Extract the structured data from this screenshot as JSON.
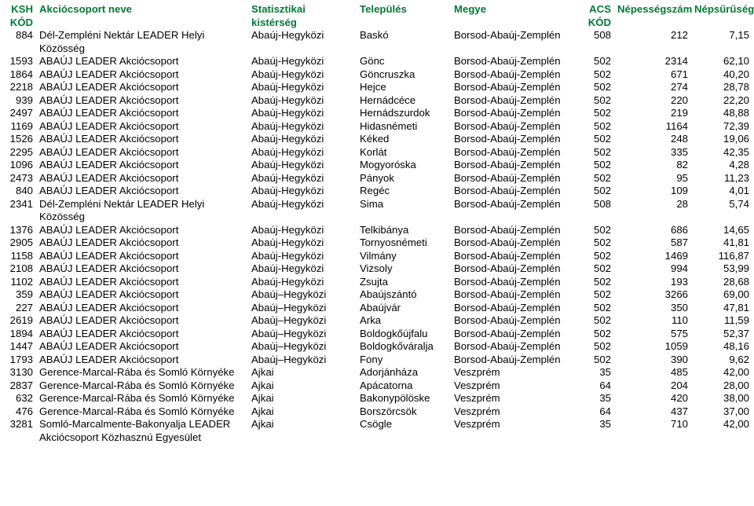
{
  "style": {
    "header_color": "#007a33",
    "row_color": "#000000",
    "background": "#ffffff",
    "font_family": "Arial",
    "font_size_pt": 10
  },
  "columns": [
    {
      "key": "ksh",
      "label": "KSH KÓD"
    },
    {
      "key": "name",
      "label": "Akciócsoport neve"
    },
    {
      "key": "kist",
      "label": "Statisztikai kistérség"
    },
    {
      "key": "tel",
      "label": "Település"
    },
    {
      "key": "megye",
      "label": "Megye"
    },
    {
      "key": "acs",
      "label": "ACS KÓD"
    },
    {
      "key": "pop",
      "label": "Népességszám"
    },
    {
      "key": "dens",
      "label": "Népsűrűség"
    }
  ],
  "rows": [
    {
      "ksh": "884",
      "name": "Dél-Zempléni Nektár LEADER Helyi Közösség",
      "kist": "Abaúj-Hegyközi",
      "tel": "Baskó",
      "megye": "Borsod-Abaúj-Zemplén",
      "acs": "508",
      "pop": "212",
      "dens": "7,15"
    },
    {
      "ksh": "1593",
      "name": "ABAÚJ LEADER Akciócsoport",
      "kist": "Abaúj-Hegyközi",
      "tel": "Gönc",
      "megye": "Borsod-Abaúj-Zemplén",
      "acs": "502",
      "pop": "2314",
      "dens": "62,10"
    },
    {
      "ksh": "1864",
      "name": "ABAÚJ LEADER Akciócsoport",
      "kist": "Abaúj-Hegyközi",
      "tel": "Göncruszka",
      "megye": "Borsod-Abaúj-Zemplén",
      "acs": "502",
      "pop": "671",
      "dens": "40,20"
    },
    {
      "ksh": "2218",
      "name": "ABAÚJ LEADER Akciócsoport",
      "kist": "Abaúj-Hegyközi",
      "tel": "Hejce",
      "megye": "Borsod-Abaúj-Zemplén",
      "acs": "502",
      "pop": "274",
      "dens": "28,78"
    },
    {
      "ksh": "939",
      "name": "ABAÚJ LEADER Akciócsoport",
      "kist": "Abaúj-Hegyközi",
      "tel": "Hernádcéce",
      "megye": "Borsod-Abaúj-Zemplén",
      "acs": "502",
      "pop": "220",
      "dens": "22,20"
    },
    {
      "ksh": "2497",
      "name": "ABAÚJ LEADER Akciócsoport",
      "kist": "Abaúj-Hegyközi",
      "tel": "Hernádszurdok",
      "megye": "Borsod-Abaúj-Zemplén",
      "acs": "502",
      "pop": "219",
      "dens": "48,88"
    },
    {
      "ksh": "1169",
      "name": "ABAÚJ LEADER Akciócsoport",
      "kist": "Abaúj-Hegyközi",
      "tel": "Hidasnémeti",
      "megye": "Borsod-Abaúj-Zemplén",
      "acs": "502",
      "pop": "1164",
      "dens": "72,39"
    },
    {
      "ksh": "1526",
      "name": "ABAÚJ LEADER Akciócsoport",
      "kist": "Abaúj-Hegyközi",
      "tel": "Kéked",
      "megye": "Borsod-Abaúj-Zemplén",
      "acs": "502",
      "pop": "248",
      "dens": "19,06"
    },
    {
      "ksh": "2295",
      "name": "ABAÚJ LEADER Akciócsoport",
      "kist": "Abaúj-Hegyközi",
      "tel": "Korlát",
      "megye": "Borsod-Abaúj-Zemplén",
      "acs": "502",
      "pop": "335",
      "dens": "42,35"
    },
    {
      "ksh": "1096",
      "name": "ABAÚJ LEADER Akciócsoport",
      "kist": "Abaúj-Hegyközi",
      "tel": "Mogyoróska",
      "megye": "Borsod-Abaúj-Zemplén",
      "acs": "502",
      "pop": "82",
      "dens": "4,28"
    },
    {
      "ksh": "2473",
      "name": "ABAÚJ LEADER Akciócsoport",
      "kist": "Abaúj-Hegyközi",
      "tel": "Pányok",
      "megye": "Borsod-Abaúj-Zemplén",
      "acs": "502",
      "pop": "95",
      "dens": "11,23"
    },
    {
      "ksh": "840",
      "name": "ABAÚJ LEADER Akciócsoport",
      "kist": "Abaúj-Hegyközi",
      "tel": "Regéc",
      "megye": "Borsod-Abaúj-Zemplén",
      "acs": "502",
      "pop": "109",
      "dens": "4,01"
    },
    {
      "ksh": "2341",
      "name": "Dél-Zempléni Nektár LEADER Helyi Közösség",
      "kist": "Abaúj-Hegyközi",
      "tel": "Sima",
      "megye": "Borsod-Abaúj-Zemplén",
      "acs": "508",
      "pop": "28",
      "dens": "5,74"
    },
    {
      "ksh": "1376",
      "name": "ABAÚJ LEADER Akciócsoport",
      "kist": "Abaúj-Hegyközi",
      "tel": "Telkibánya",
      "megye": "Borsod-Abaúj-Zemplén",
      "acs": "502",
      "pop": "686",
      "dens": "14,65"
    },
    {
      "ksh": "2905",
      "name": "ABAÚJ LEADER Akciócsoport",
      "kist": "Abaúj-Hegyközi",
      "tel": "Tornyosnémeti",
      "megye": "Borsod-Abaúj-Zemplén",
      "acs": "502",
      "pop": "587",
      "dens": "41,81"
    },
    {
      "ksh": "1158",
      "name": "ABAÚJ LEADER Akciócsoport",
      "kist": "Abaúj-Hegyközi",
      "tel": "Vilmány",
      "megye": "Borsod-Abaúj-Zemplén",
      "acs": "502",
      "pop": "1469",
      "dens": "116,87"
    },
    {
      "ksh": "2108",
      "name": "ABAÚJ LEADER Akciócsoport",
      "kist": "Abaúj-Hegyközi",
      "tel": "Vizsoly",
      "megye": "Borsod-Abaúj-Zemplén",
      "acs": "502",
      "pop": "994",
      "dens": "53,99"
    },
    {
      "ksh": "1102",
      "name": "ABAÚJ LEADER Akciócsoport",
      "kist": "Abaúj-Hegyközi",
      "tel": "Zsujta",
      "megye": "Borsod-Abaúj-Zemplén",
      "acs": "502",
      "pop": "193",
      "dens": "28,68"
    },
    {
      "ksh": "359",
      "name": "ABAÚJ LEADER Akciócsoport",
      "kist": "Abaúj–Hegyközi",
      "tel": "Abaújszántó",
      "megye": "Borsod-Abaúj-Zemplén",
      "acs": "502",
      "pop": "3266",
      "dens": "69,00"
    },
    {
      "ksh": "227",
      "name": "ABAÚJ LEADER Akciócsoport",
      "kist": "Abaúj–Hegyközi",
      "tel": "Abaújvár",
      "megye": "Borsod-Abaúj-Zemplén",
      "acs": "502",
      "pop": "350",
      "dens": "47,81"
    },
    {
      "ksh": "2619",
      "name": "ABAÚJ LEADER Akciócsoport",
      "kist": "Abaúj–Hegyközi",
      "tel": "Arka",
      "megye": "Borsod-Abaúj-Zemplén",
      "acs": "502",
      "pop": "110",
      "dens": "11,59"
    },
    {
      "ksh": "1894",
      "name": "ABAÚJ LEADER Akciócsoport",
      "kist": "Abaúj–Hegyközi",
      "tel": "Boldogkőújfalu",
      "megye": "Borsod-Abaúj-Zemplén",
      "acs": "502",
      "pop": "575",
      "dens": "52,37"
    },
    {
      "ksh": "1447",
      "name": "ABAÚJ LEADER Akciócsoport",
      "kist": "Abaúj–Hegyközi",
      "tel": "Boldogkőváralja",
      "megye": "Borsod-Abaúj-Zemplén",
      "acs": "502",
      "pop": "1059",
      "dens": "48,16"
    },
    {
      "ksh": "1793",
      "name": "ABAÚJ LEADER Akciócsoport",
      "kist": "Abaúj–Hegyközi",
      "tel": "Fony",
      "megye": "Borsod-Abaúj-Zemplén",
      "acs": "502",
      "pop": "390",
      "dens": "9,62"
    },
    {
      "ksh": "3130",
      "name": "Gerence-Marcal-Rába és Somló Környéke",
      "kist": "Ajkai",
      "tel": "Adorjánháza",
      "megye": "Veszprém",
      "acs": "35",
      "pop": "485",
      "dens": "42,00"
    },
    {
      "ksh": "2837",
      "name": "Gerence-Marcal-Rába és Somló Környéke",
      "kist": "Ajkai",
      "tel": "Apácatorna",
      "megye": "Veszprém",
      "acs": "64",
      "pop": "204",
      "dens": "28,00"
    },
    {
      "ksh": "632",
      "name": "Gerence-Marcal-Rába és Somló Környéke",
      "kist": "Ajkai",
      "tel": "Bakonypölöske",
      "megye": "Veszprém",
      "acs": "35",
      "pop": "420",
      "dens": "38,00"
    },
    {
      "ksh": "476",
      "name": "Gerence-Marcal-Rába és Somló Környéke",
      "kist": "Ajkai",
      "tel": "Borszörcsök",
      "megye": "Veszprém",
      "acs": "64",
      "pop": "437",
      "dens": "37,00"
    },
    {
      "ksh": "3281",
      "name": "Somló-Marcalmente-Bakonyalja LEADER Akciócsoport Közhasznú Egyesület",
      "kist": "Ajkai",
      "tel": "Csögle",
      "megye": "Veszprém",
      "acs": "35",
      "pop": "710",
      "dens": "42,00"
    }
  ]
}
